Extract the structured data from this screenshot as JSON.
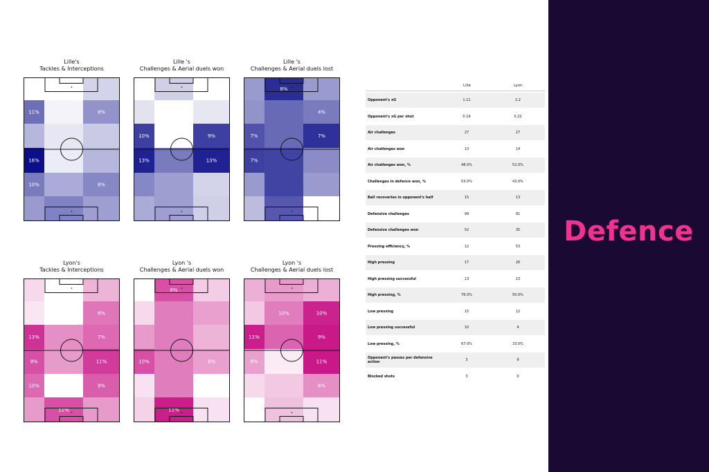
{
  "sidebar": {
    "word": "Defence"
  },
  "colors": {
    "lille_heat": "#0d0f8a",
    "lyon_heat": "#c4057e",
    "sidebar_bg": "#1a0933",
    "sidebar_text": "#f0338f"
  },
  "chart_data": [
    {
      "type": "heatmap",
      "team": "lille",
      "title_line1": "Lille's",
      "title_line2": "Tackles & Interceptions",
      "color": "#0d0f8a",
      "rows": [
        [
          0.0,
          0.0,
          0.18
        ],
        [
          0.6,
          0.05,
          0.45
        ],
        [
          0.3,
          0.1,
          0.22
        ],
        [
          1.0,
          0.08,
          0.3
        ],
        [
          0.55,
          0.35,
          0.5
        ],
        [
          0.42,
          0.52,
          0.4
        ]
      ],
      "labels": [
        [
          "",
          "",
          ""
        ],
        [
          "11%",
          "",
          "8%"
        ],
        [
          "",
          "",
          ""
        ],
        [
          "16%",
          "",
          ""
        ],
        [
          "10%",
          "",
          "8%"
        ],
        [
          "",
          "",
          ""
        ]
      ]
    },
    {
      "type": "heatmap",
      "team": "lille",
      "title_line1": "Lille 's",
      "title_line2": "Challenges & Aerial duels won",
      "color": "#0d0f8a",
      "rows": [
        [
          0.0,
          0.2,
          0.0
        ],
        [
          0.12,
          0.0,
          0.1
        ],
        [
          0.8,
          0.0,
          0.8
        ],
        [
          0.92,
          0.55,
          0.92
        ],
        [
          0.5,
          0.4,
          0.18
        ],
        [
          0.35,
          0.4,
          0.2
        ]
      ],
      "labels": [
        [
          "",
          "",
          ""
        ],
        [
          "",
          "",
          ""
        ],
        [
          "10%",
          "",
          "9%"
        ],
        [
          "13%",
          "",
          "13%"
        ],
        [
          "",
          "",
          ""
        ],
        [
          "",
          "",
          ""
        ]
      ]
    },
    {
      "type": "heatmap",
      "team": "lille",
      "title_line1": "Lille 's",
      "title_line2": "Challenges & Aerial duels lost",
      "color": "#0d0f8a",
      "rows": [
        [
          0.42,
          0.88,
          0.42
        ],
        [
          0.45,
          0.62,
          0.55
        ],
        [
          0.72,
          0.62,
          0.86
        ],
        [
          0.8,
          0.78,
          0.48
        ],
        [
          0.42,
          0.78,
          0.42
        ],
        [
          0.28,
          0.7,
          0.0
        ]
      ],
      "labels": [
        [
          "",
          "8%",
          ""
        ],
        [
          "",
          "",
          "4%"
        ],
        [
          "7%",
          "",
          "7%"
        ],
        [
          "7%",
          "",
          ""
        ],
        [
          "",
          "",
          ""
        ],
        [
          "",
          "",
          ""
        ]
      ]
    },
    {
      "type": "heatmap",
      "team": "lyon",
      "title_line1": "Lyon's",
      "title_line2": "Tackles & Interceptions",
      "color": "#c4057e",
      "rows": [
        [
          0.15,
          0.0,
          0.3
        ],
        [
          0.1,
          0.0,
          0.55
        ],
        [
          0.82,
          0.45,
          0.6
        ],
        [
          0.7,
          0.4,
          0.78
        ],
        [
          0.6,
          0.0,
          0.65
        ],
        [
          0.4,
          0.7,
          0.4
        ]
      ],
      "labels": [
        [
          "",
          "",
          ""
        ],
        [
          "",
          "",
          "8%"
        ],
        [
          "13%",
          "",
          "7%"
        ],
        [
          "9%",
          "",
          "11%"
        ],
        [
          "10%",
          "",
          "9%"
        ],
        [
          "",
          "11%",
          ""
        ]
      ]
    },
    {
      "type": "heatmap",
      "team": "lyon",
      "title_line1": "Lyon 's",
      "title_line2": "Challenges & Aerial duels won",
      "color": "#c4057e",
      "rows": [
        [
          0.0,
          0.7,
          0.2
        ],
        [
          0.15,
          0.52,
          0.38
        ],
        [
          0.4,
          0.52,
          0.3
        ],
        [
          0.7,
          0.52,
          0.38
        ],
        [
          0.12,
          0.52,
          0.0
        ],
        [
          0.18,
          0.9,
          0.12
        ]
      ],
      "labels": [
        [
          "",
          "8%",
          ""
        ],
        [
          "",
          "",
          ""
        ],
        [
          "",
          "",
          ""
        ],
        [
          "10%",
          "",
          "6%"
        ],
        [
          "",
          "",
          ""
        ],
        [
          "",
          "11%",
          ""
        ]
      ]
    },
    {
      "type": "heatmap",
      "team": "lyon",
      "title_line1": "Lyon 's",
      "title_line2": "Challenges & Aerial duels lost",
      "color": "#c4057e",
      "rows": [
        [
          0.32,
          0.4,
          0.32
        ],
        [
          0.22,
          0.52,
          0.88
        ],
        [
          0.9,
          0.62,
          0.92
        ],
        [
          0.38,
          0.08,
          0.92
        ],
        [
          0.15,
          0.22,
          0.45
        ],
        [
          0.0,
          0.25,
          0.12
        ]
      ],
      "labels": [
        [
          "",
          "",
          ""
        ],
        [
          "",
          "10%",
          "10%"
        ],
        [
          "11%",
          "",
          "9%"
        ],
        [
          "8%",
          "",
          "11%"
        ],
        [
          "",
          "",
          "6%"
        ],
        [
          "",
          "",
          ""
        ]
      ]
    },
    {
      "type": "table",
      "columns": [
        "",
        "Lille",
        "Lyon"
      ],
      "rows": [
        [
          "Opponent's xG",
          "1.11",
          "2.2"
        ],
        [
          "Opponent's xG per shot",
          "0.19",
          "0.22"
        ],
        [
          "Air challenges",
          "27",
          "27"
        ],
        [
          "Air challenges won",
          "13",
          "14"
        ],
        [
          "Air challenges won, %",
          "48.0%",
          "52.0%"
        ],
        [
          "Challenges in defence won, %",
          "53.0%",
          "43.0%"
        ],
        [
          "Ball recoveries in opponent's half",
          "15",
          "13"
        ],
        [
          "Defensive challenges",
          "99",
          "81"
        ],
        [
          "Defensive challenges won",
          "52",
          "35"
        ],
        [
          "Pressing efficiency, %",
          "12",
          "53"
        ],
        [
          "High pressing",
          "17",
          "26"
        ],
        [
          "High pressing successful",
          "13",
          "13"
        ],
        [
          "High pressing, %",
          "76.0%",
          "50.0%"
        ],
        [
          "Low pressing",
          "15",
          "12"
        ],
        [
          "Low pressing successful",
          "10",
          "4"
        ],
        [
          "Low pressing, %",
          "67.0%",
          "33.0%"
        ],
        [
          "Opponent's passes per defensive action",
          "3",
          "9"
        ],
        [
          "Blocked shots",
          "3",
          "0"
        ]
      ]
    }
  ]
}
